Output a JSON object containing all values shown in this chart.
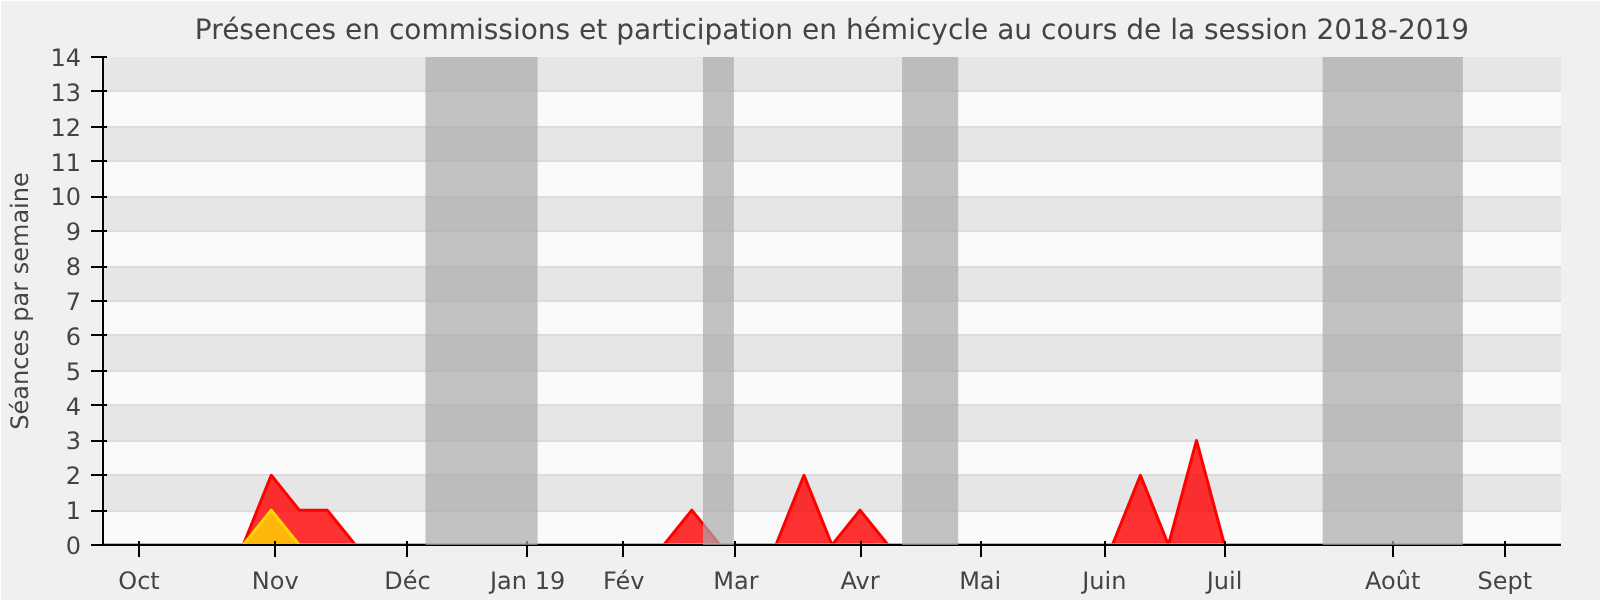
{
  "chart_data": {
    "type": "area",
    "title": "Présences en commissions et participation en hémicycle au cours de la session 2018-2019",
    "ylabel": "Séances par semaine",
    "x": [
      "2018-09-24",
      "2018-10-01",
      "2018-10-08",
      "2018-10-15",
      "2018-10-22",
      "2018-10-29",
      "2018-11-05",
      "2018-11-12",
      "2018-11-19",
      "2018-11-26",
      "2018-12-03",
      "2018-12-10",
      "2018-12-17",
      "2018-12-24",
      "2018-12-31",
      "2019-01-07",
      "2019-01-14",
      "2019-01-21",
      "2019-01-28",
      "2019-02-04",
      "2019-02-11",
      "2019-02-18",
      "2019-02-25",
      "2019-03-04",
      "2019-03-11",
      "2019-03-18",
      "2019-03-25",
      "2019-04-01",
      "2019-04-08",
      "2019-04-15",
      "2019-04-22",
      "2019-04-29",
      "2019-05-06",
      "2019-05-13",
      "2019-05-20",
      "2019-05-27",
      "2019-06-03",
      "2019-06-10",
      "2019-06-17",
      "2019-06-24",
      "2019-07-01",
      "2019-07-08",
      "2019-07-15",
      "2019-07-22",
      "2019-07-29",
      "2019-08-05",
      "2019-08-12",
      "2019-08-19",
      "2019-08-26",
      "2019-09-02",
      "2019-09-09",
      "2019-09-16",
      "2019-09-23"
    ],
    "series": [
      {
        "color": "#ff0000",
        "values": [
          0,
          0,
          0,
          0,
          0,
          0,
          2,
          1,
          1,
          0,
          0,
          0,
          0,
          0,
          0,
          0,
          0,
          0,
          0,
          0,
          0,
          1,
          0,
          0,
          0,
          2,
          0,
          1,
          0,
          0,
          0,
          0,
          0,
          0,
          0,
          0,
          0,
          2,
          0,
          3,
          0,
          0,
          0,
          0,
          0,
          0,
          0,
          0,
          0,
          0,
          0,
          0,
          0
        ]
      },
      {
        "color": "#ffd700",
        "values": [
          0,
          0,
          0,
          0,
          0,
          0,
          1,
          0,
          0,
          0,
          0,
          0,
          0,
          0,
          0,
          0,
          0,
          0,
          0,
          0,
          0,
          0,
          0,
          0,
          0,
          0,
          0,
          0,
          0,
          0,
          0,
          0,
          0,
          0,
          0,
          0,
          0,
          0,
          0,
          0,
          0,
          0,
          0,
          0,
          0,
          0,
          0,
          0,
          0,
          0,
          0,
          0,
          0
        ]
      }
    ],
    "xlim": [
      "2018-09-24",
      "2019-09-23"
    ],
    "ylim": [
      0,
      14
    ],
    "xticks": [
      {
        "value": "2018-10-03",
        "label": "Oct"
      },
      {
        "value": "2018-11-06",
        "label": "Nov"
      },
      {
        "value": "2018-12-09",
        "label": "Déc"
      },
      {
        "value": "2019-01-08",
        "label": "Jan 19"
      },
      {
        "value": "2019-02-01",
        "label": "Fév"
      },
      {
        "value": "2019-03-01",
        "label": "Mar"
      },
      {
        "value": "2019-04-01",
        "label": "Avr"
      },
      {
        "value": "2019-05-01",
        "label": "Mai"
      },
      {
        "value": "2019-06-01",
        "label": "Juin"
      },
      {
        "value": "2019-07-01",
        "label": "Juil"
      },
      {
        "value": "2019-08-12",
        "label": "Août"
      },
      {
        "value": "2019-09-09",
        "label": "Sept"
      }
    ],
    "yticks": [
      0,
      1,
      2,
      3,
      4,
      5,
      6,
      7,
      8,
      9,
      10,
      11,
      12,
      13,
      14
    ],
    "bands": [
      {
        "axis": "x",
        "from": "2018-12-13T12:00",
        "to": "2019-01-10T12:00",
        "color": "#aaaaaa"
      },
      {
        "axis": "x",
        "from": "2019-02-20T19:00",
        "to": "2019-02-28T12:00",
        "color": "#aaaaaa"
      },
      {
        "axis": "x",
        "from": "2019-04-11T12:00",
        "to": "2019-04-25T12:00",
        "color": "#aaaaaa"
      },
      {
        "axis": "x",
        "from": "2019-07-25T12:00",
        "to": "2019-08-29T12:00",
        "color": "#aaaaaa"
      }
    ],
    "grid": "y"
  }
}
